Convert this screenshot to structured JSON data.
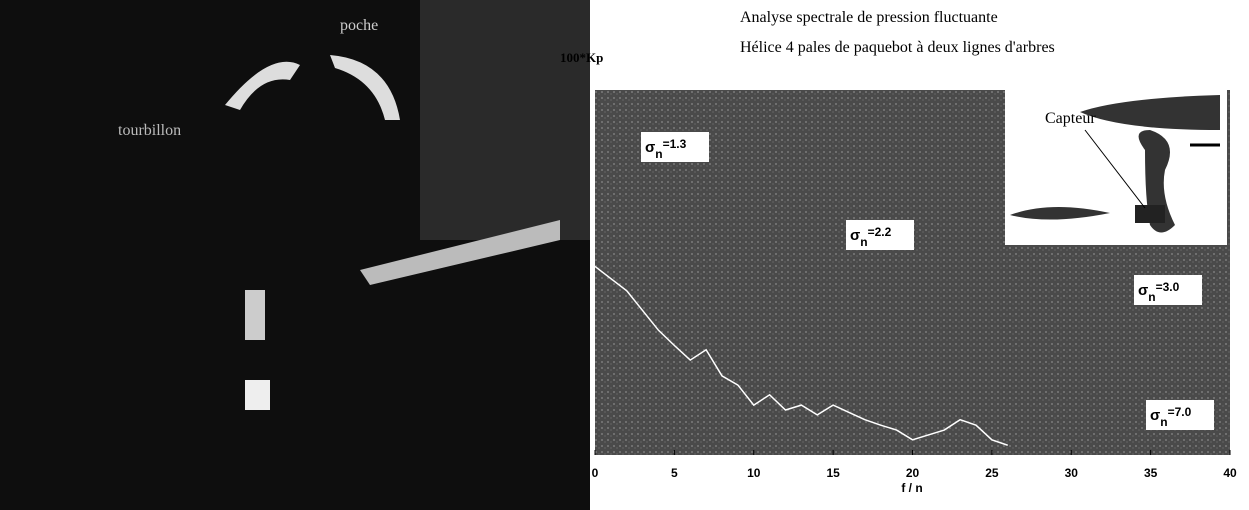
{
  "photo": {
    "labels": [
      "poche",
      "tourbillon"
    ]
  },
  "chart_data": {
    "type": "line",
    "title": [
      "Analyse spectrale de pression fluctuante",
      "Hélice 4 pales de paquebot à deux lignes d'arbres"
    ],
    "y_label": "100*Kp",
    "x_label": "f / n",
    "x": [
      0,
      2,
      4,
      5,
      6,
      7,
      8,
      9,
      10,
      11,
      12,
      13,
      14,
      15,
      16,
      17,
      18,
      19,
      20,
      21,
      22,
      23,
      24,
      25,
      26
    ],
    "series": [
      {
        "color": "#ffffff",
        "values": [
          3.1,
          2.7,
          2.05,
          1.8,
          1.56,
          1.73,
          1.3,
          1.15,
          0.82,
          0.99,
          0.74,
          0.82,
          0.66,
          0.82,
          0.7,
          0.58,
          0.49,
          0.41,
          0.25,
          0.33,
          0.41,
          0.58,
          0.49,
          0.25,
          0.16
        ]
      }
    ],
    "xlim": [
      0,
      40
    ],
    "xticks": [
      0,
      5,
      10,
      15,
      20,
      25,
      30,
      35,
      40
    ],
    "ylim": [
      0,
      6
    ],
    "annotations": [
      {
        "base": "σ",
        "sub": "n",
        "text": "=1.3"
      },
      {
        "base": "σ",
        "sub": "n",
        "text": "=2.2"
      },
      {
        "base": "σ",
        "sub": "n",
        "text": "=3.0"
      },
      {
        "base": "σ",
        "sub": "n",
        "text": "=7.0"
      }
    ],
    "inset_label": "Capteur"
  }
}
